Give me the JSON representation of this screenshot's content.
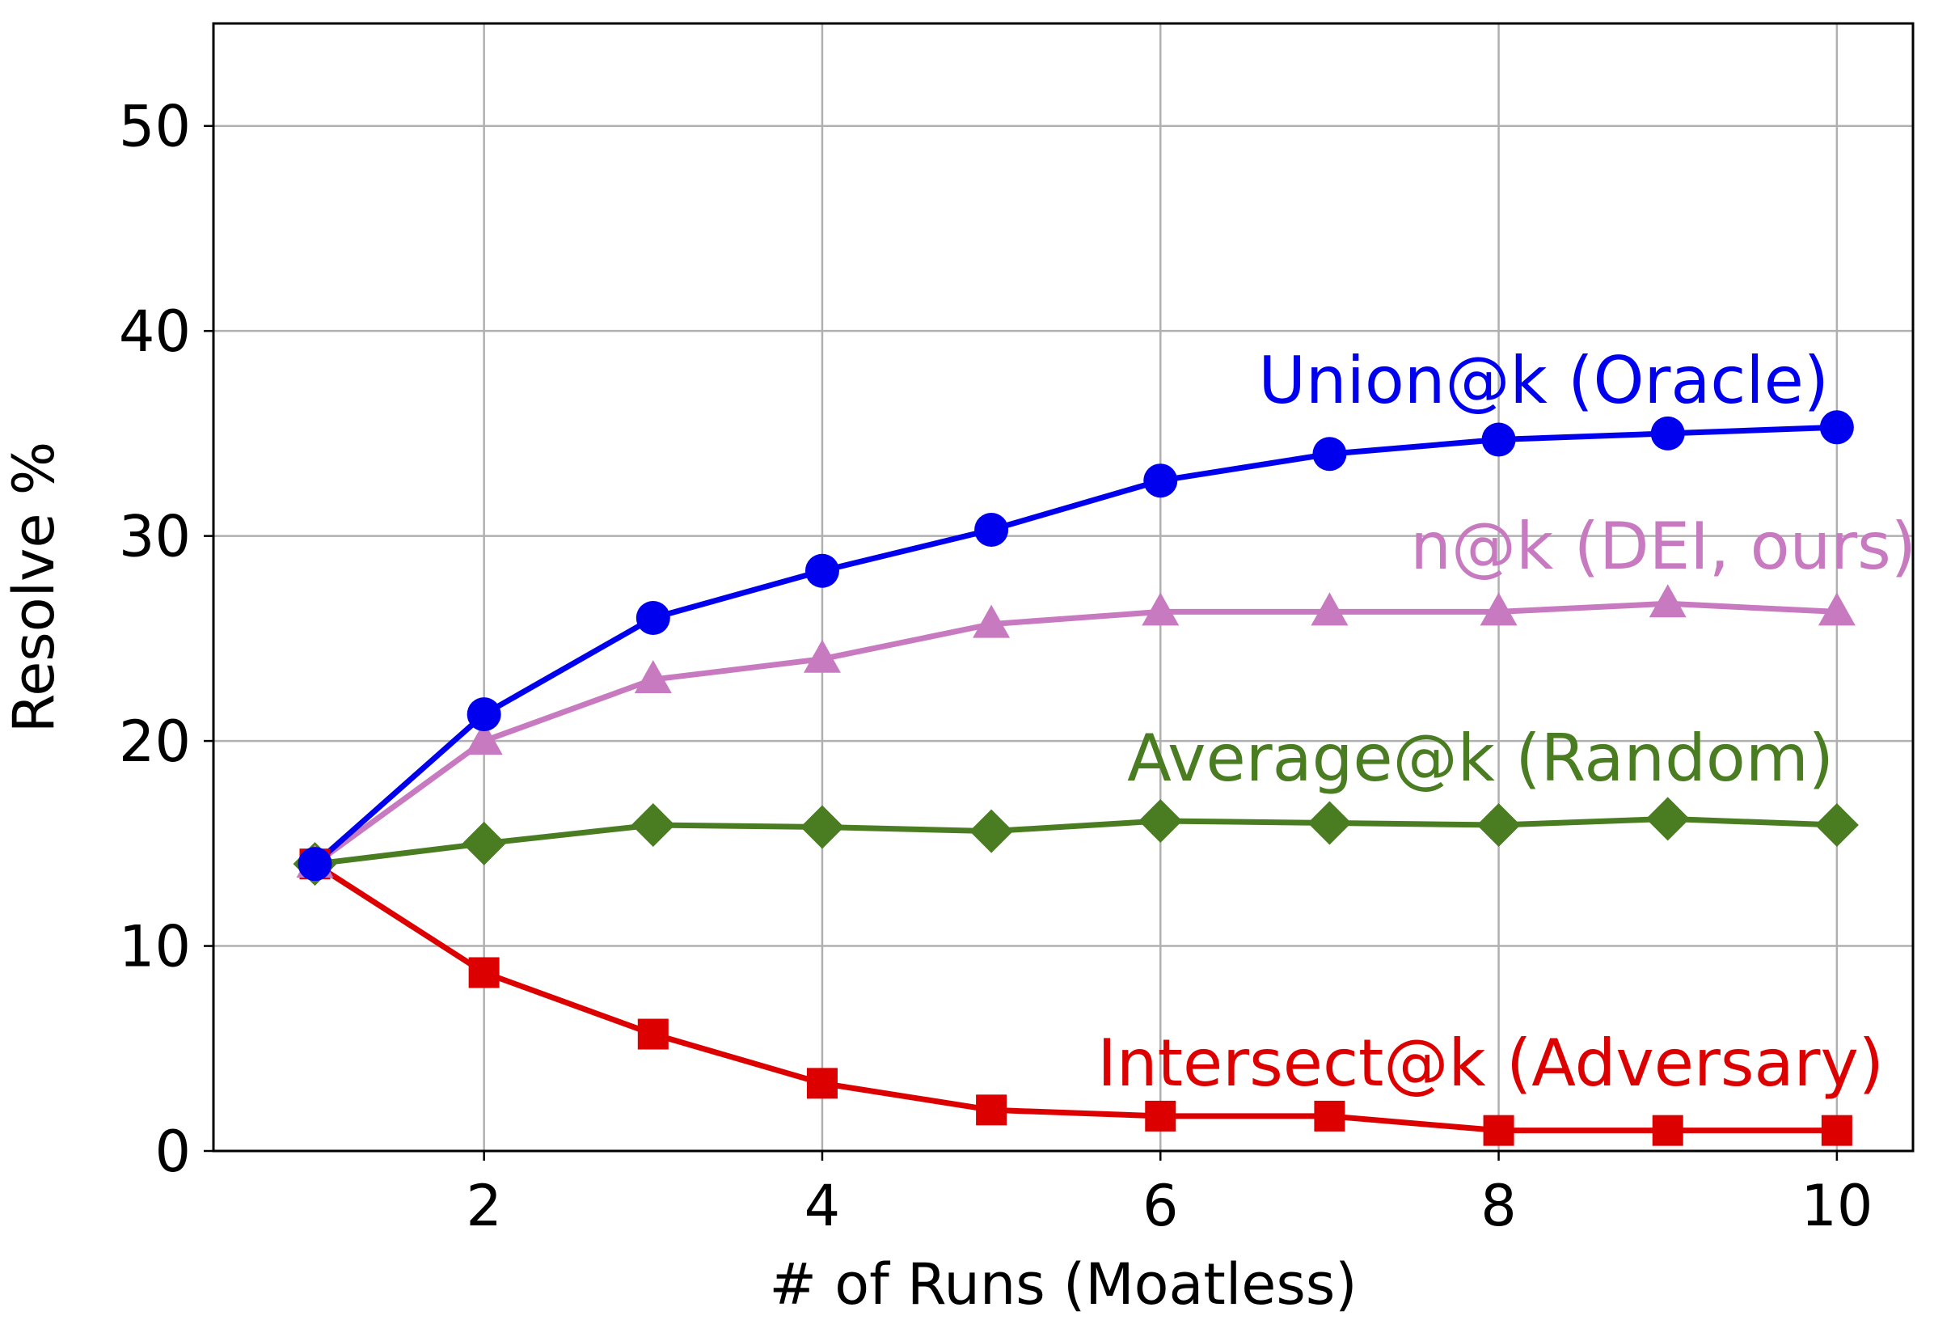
{
  "chart_data": {
    "type": "line",
    "xlabel": "# of Runs (Moatless)",
    "ylabel": "Resolve %",
    "xlim": [
      0.4,
      10.45
    ],
    "ylim": [
      0,
      55
    ],
    "xticks": [
      2,
      4,
      6,
      8,
      10
    ],
    "yticks": [
      0,
      10,
      20,
      30,
      40,
      50
    ],
    "grid": true,
    "x": [
      1,
      2,
      3,
      4,
      5,
      6,
      7,
      8,
      9,
      10
    ],
    "series": [
      {
        "name": "Union@k (Oracle)",
        "color": "#0000ee",
        "marker": "circle",
        "values": [
          14.0,
          21.3,
          26.0,
          28.3,
          30.3,
          32.7,
          34.0,
          34.7,
          35.0,
          35.3
        ]
      },
      {
        "name": "n@k (DEI, ours)",
        "color": "#c87ac0",
        "marker": "triangle",
        "values": [
          14.0,
          20.0,
          23.0,
          24.0,
          25.7,
          26.3,
          26.3,
          26.3,
          26.7,
          26.3
        ]
      },
      {
        "name": "Average@k (Random)",
        "color": "#4a7d22",
        "marker": "diamond",
        "values": [
          14.0,
          15.0,
          15.9,
          15.8,
          15.6,
          16.1,
          16.0,
          15.9,
          16.2,
          15.9
        ]
      },
      {
        "name": "Intersect@k (Adversary)",
        "color": "#dd0000",
        "marker": "square",
        "values": [
          14.0,
          8.7,
          5.7,
          3.3,
          2.0,
          1.7,
          1.7,
          1.0,
          1.0,
          1.0
        ]
      }
    ]
  }
}
